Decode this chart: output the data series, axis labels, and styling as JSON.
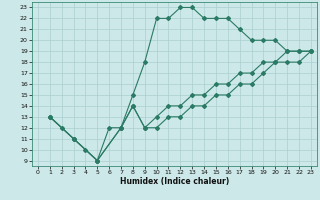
{
  "xlabel": "Humidex (Indice chaleur)",
  "xlim": [
    -0.5,
    23.5
  ],
  "ylim": [
    8.5,
    23.5
  ],
  "xticks": [
    0,
    1,
    2,
    3,
    4,
    5,
    6,
    7,
    8,
    9,
    10,
    11,
    12,
    13,
    14,
    15,
    16,
    17,
    18,
    19,
    20,
    21,
    22,
    23
  ],
  "yticks": [
    9,
    10,
    11,
    12,
    13,
    14,
    15,
    16,
    17,
    18,
    19,
    20,
    21,
    22,
    23
  ],
  "line_color": "#2a7a65",
  "bg_color": "#cde8e8",
  "grid_color": "#aacfcf",
  "line1_x": [
    1,
    2,
    3,
    4,
    5,
    6,
    7,
    8,
    9,
    10,
    11,
    12,
    13,
    14,
    15,
    16,
    17,
    18,
    19,
    20,
    21,
    22,
    23
  ],
  "line1_y": [
    13,
    12,
    11,
    10,
    9,
    12,
    12,
    15,
    18,
    22,
    22,
    23,
    23,
    22,
    22,
    22,
    21,
    20,
    20,
    20,
    19,
    19,
    19
  ],
  "line2_x": [
    1,
    3,
    5,
    7,
    8,
    9,
    10,
    11,
    12,
    13,
    14,
    15,
    16,
    17,
    18,
    19,
    20,
    21,
    22,
    23
  ],
  "line2_y": [
    13,
    11,
    9,
    12,
    14,
    12,
    13,
    14,
    14,
    15,
    15,
    16,
    16,
    17,
    17,
    18,
    18,
    19,
    19,
    19
  ],
  "line3_x": [
    1,
    3,
    5,
    7,
    8,
    9,
    10,
    11,
    12,
    13,
    14,
    15,
    16,
    17,
    18,
    19,
    20,
    21,
    22,
    23
  ],
  "line3_y": [
    13,
    11,
    9,
    12,
    14,
    12,
    12,
    13,
    13,
    14,
    14,
    15,
    15,
    16,
    16,
    17,
    18,
    18,
    18,
    19
  ]
}
